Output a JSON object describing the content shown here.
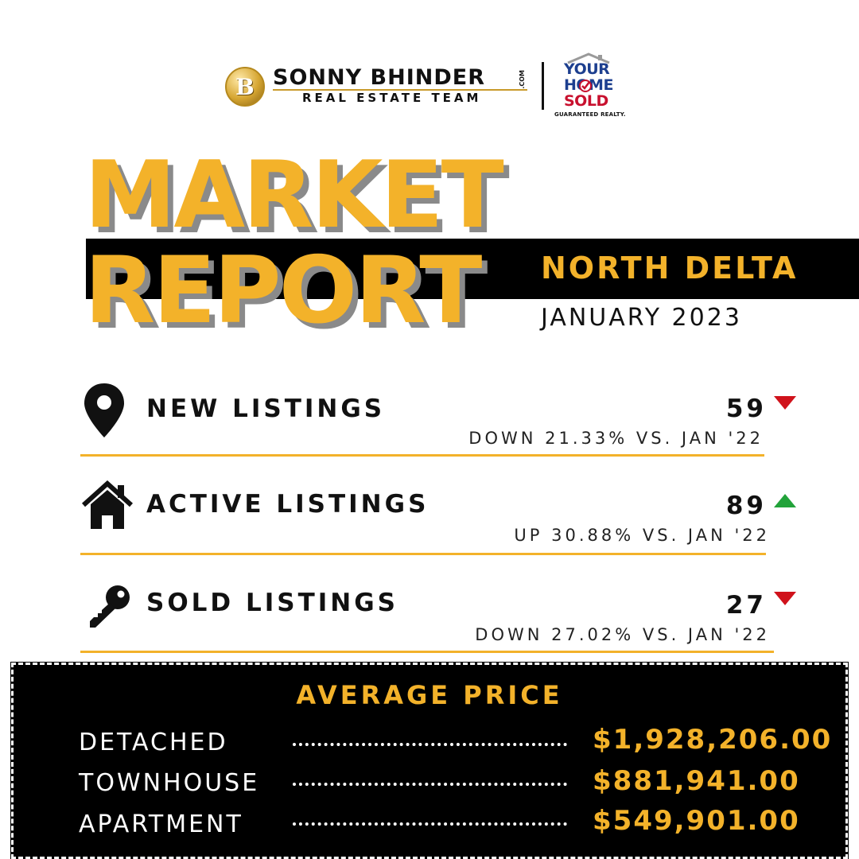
{
  "header": {
    "brand_initial": "B",
    "brand_name": "SONNY BHINDER",
    "brand_com": ".COM",
    "brand_subtitle": "REAL ESTATE TEAM",
    "partner_line1": "YOUR",
    "partner_line2": "HOME",
    "partner_line3": "SOLD",
    "partner_footer": "GUARANTEED REALTY.",
    "partner_colors": {
      "blue": "#1d3f8f",
      "red": "#c8102e"
    }
  },
  "title": {
    "line1": "MARKET",
    "line2": "REPORT",
    "location": "NORTH DELTA",
    "period": "JANUARY 2023"
  },
  "stats": [
    {
      "icon": "map-pin-icon",
      "label": "NEW LISTINGS",
      "value": "59",
      "trend": "down",
      "change": "DOWN 21.33% VS. JAN '22"
    },
    {
      "icon": "house-icon",
      "label": "ACTIVE LISTINGS",
      "value": "89",
      "trend": "up",
      "change": "UP 30.88% VS. JAN '22"
    },
    {
      "icon": "key-icon",
      "label": "SOLD LISTINGS",
      "value": "27",
      "trend": "down",
      "change": "DOWN 27.02% VS. JAN '22"
    }
  ],
  "average_price": {
    "title": "AVERAGE PRICE",
    "rows": [
      {
        "label": "DETACHED",
        "value": "$1,928,206.00"
      },
      {
        "label": "TOWNHOUSE",
        "value": "$881,941.00"
      },
      {
        "label": "APARTMENT",
        "value": "$549,901.00"
      }
    ]
  },
  "colors": {
    "accent": "#f3b22a",
    "trend_down": "#d0121b",
    "trend_up": "#22a33a",
    "background": "#ffffff",
    "dark": "#000000"
  }
}
